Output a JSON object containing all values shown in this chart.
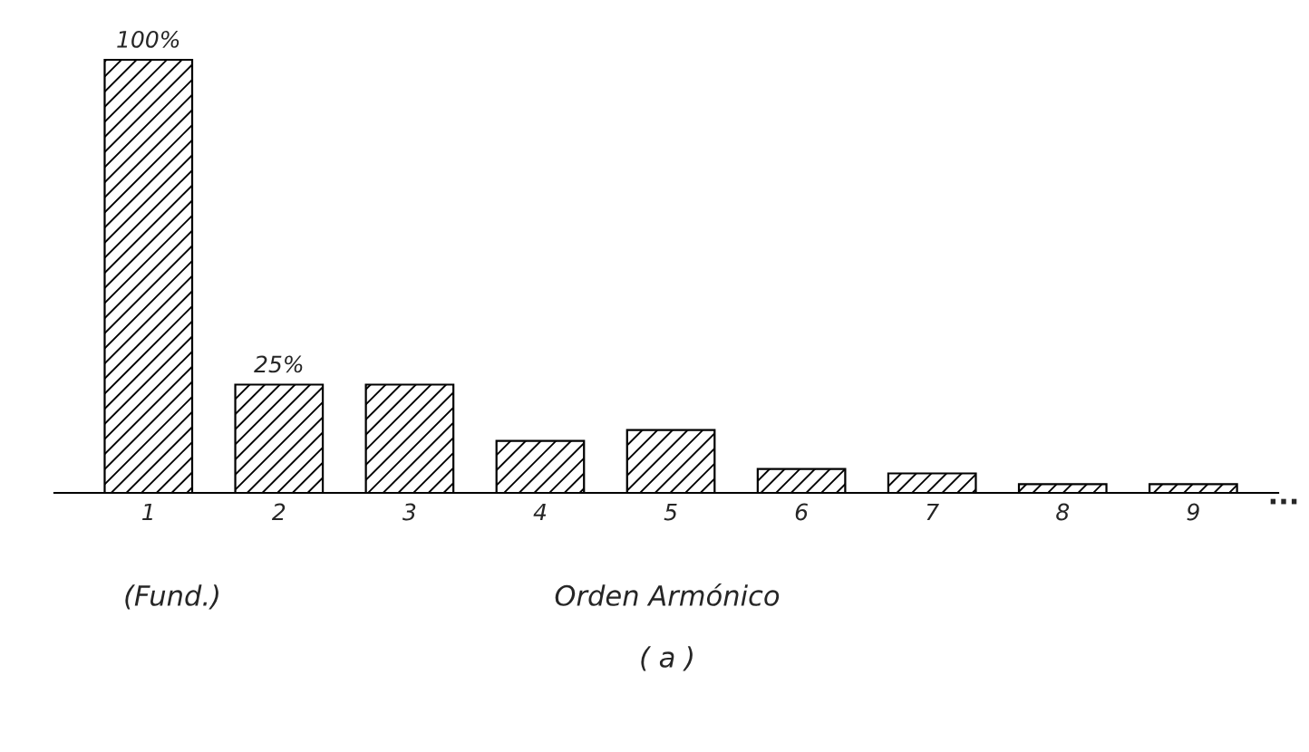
{
  "chart_data": {
    "type": "bar",
    "categories": [
      "1",
      "2",
      "3",
      "4",
      "5",
      "6",
      "7",
      "8",
      "9"
    ],
    "values": [
      100,
      25,
      25,
      12,
      14.5,
      5.5,
      4.5,
      2,
      2
    ],
    "value_labels": [
      "100%",
      "25%",
      null,
      null,
      null,
      null,
      null,
      null,
      null
    ],
    "color": "#000000",
    "xlabel": "Orden Armónico",
    "annotations": [
      "...",
      "(Fund.)",
      "( a )"
    ],
    "grid": false,
    "legend": false
  }
}
